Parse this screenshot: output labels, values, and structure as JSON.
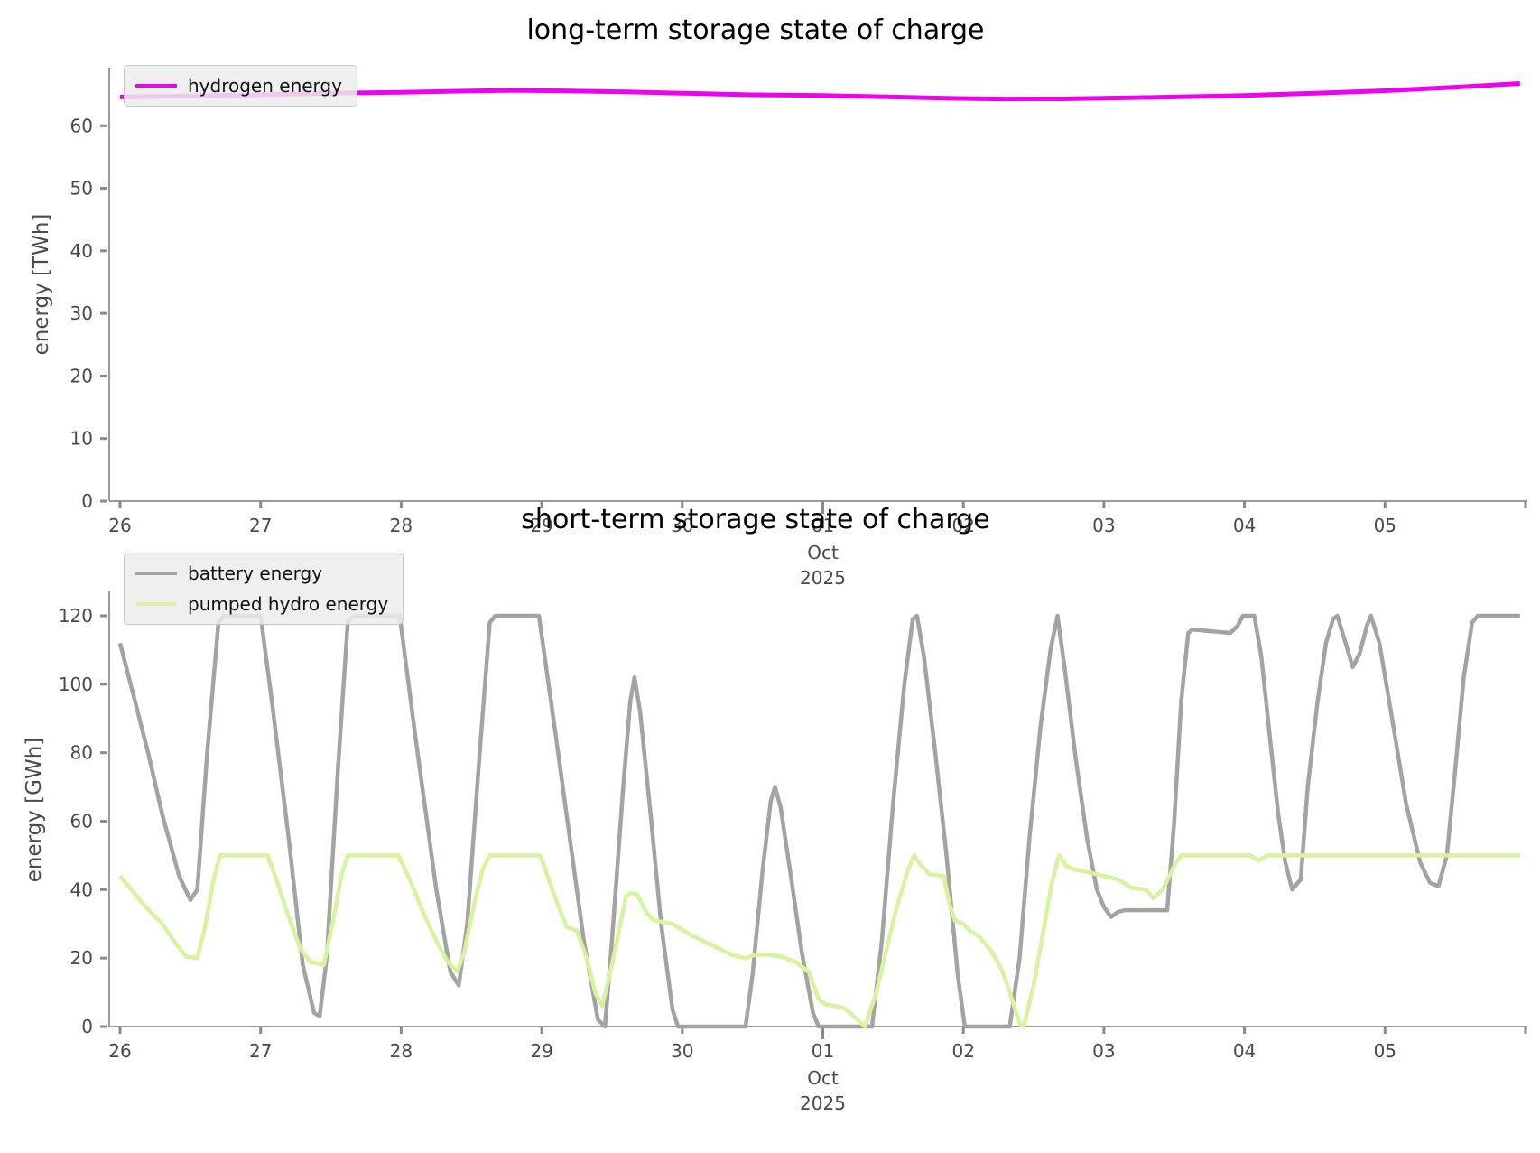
{
  "chart_data": [
    {
      "type": "line",
      "title": "long-term storage state of charge",
      "ylabel": "energy [TWh]",
      "xlabel_month": "Oct",
      "xlabel_year": "2025",
      "x_axis_note": "days from Sep 26 to Oct 05, 2025",
      "ylim": [
        0,
        70
      ],
      "yticks": [
        0,
        10,
        20,
        30,
        40,
        50,
        60
      ],
      "xticks": [
        {
          "t": 26,
          "label": "26"
        },
        {
          "t": 27,
          "label": "27"
        },
        {
          "t": 28,
          "label": "28"
        },
        {
          "t": 29,
          "label": "29"
        },
        {
          "t": 30,
          "label": "30"
        },
        {
          "t": 31,
          "label": "01",
          "major": true,
          "sub": [
            "Oct",
            "2025"
          ]
        },
        {
          "t": 32,
          "label": "02"
        },
        {
          "t": 33,
          "label": "03"
        },
        {
          "t": 34,
          "label": "04"
        },
        {
          "t": 35,
          "label": "05"
        },
        {
          "t": 36,
          "label": ""
        }
      ],
      "legend_position": "upper left",
      "grid": false,
      "series": [
        {
          "name": "hydrogen energy",
          "color": "#f000f0",
          "unit": "TWh",
          "points": [
            [
              26.0,
              64.6
            ],
            [
              26.5,
              64.75
            ],
            [
              27.0,
              64.95
            ],
            [
              27.5,
              65.2
            ],
            [
              28.0,
              65.35
            ],
            [
              28.5,
              65.55
            ],
            [
              28.8,
              65.65
            ],
            [
              29.2,
              65.55
            ],
            [
              29.6,
              65.4
            ],
            [
              30.0,
              65.2
            ],
            [
              30.5,
              64.95
            ],
            [
              31.0,
              64.85
            ],
            [
              31.3,
              64.7
            ],
            [
              31.7,
              64.5
            ],
            [
              32.0,
              64.35
            ],
            [
              32.3,
              64.28
            ],
            [
              32.7,
              64.3
            ],
            [
              33.0,
              64.4
            ],
            [
              33.5,
              64.6
            ],
            [
              34.0,
              64.85
            ],
            [
              34.5,
              65.2
            ],
            [
              35.0,
              65.6
            ],
            [
              35.5,
              66.15
            ],
            [
              35.96,
              66.75
            ]
          ]
        }
      ]
    },
    {
      "type": "line",
      "title": "short-term storage state of charge",
      "ylabel": "energy [GWh]",
      "xlabel_month": "Oct",
      "xlabel_year": "2025",
      "x_axis_note": "days from Sep 26 to Oct 05, 2025",
      "ylim": [
        0,
        127
      ],
      "yticks": [
        0,
        20,
        40,
        60,
        80,
        100,
        120
      ],
      "xticks": [
        {
          "t": 26,
          "label": "26"
        },
        {
          "t": 27,
          "label": "27"
        },
        {
          "t": 28,
          "label": "28"
        },
        {
          "t": 29,
          "label": "29"
        },
        {
          "t": 30,
          "label": "30"
        },
        {
          "t": 31,
          "label": "01",
          "major": true,
          "sub": [
            "Oct",
            "2025"
          ]
        },
        {
          "t": 32,
          "label": "02"
        },
        {
          "t": 33,
          "label": "03"
        },
        {
          "t": 34,
          "label": "04"
        },
        {
          "t": 35,
          "label": "05"
        },
        {
          "t": 36,
          "label": ""
        }
      ],
      "legend_position": "upper left",
      "grid": false,
      "series": [
        {
          "name": "battery energy",
          "color": "#a3a3a3",
          "unit": "GWh",
          "points": [
            [
              26.0,
              112
            ],
            [
              26.1,
              96
            ],
            [
              26.2,
              80
            ],
            [
              26.3,
              62
            ],
            [
              26.42,
              44
            ],
            [
              26.5,
              37
            ],
            [
              26.55,
              40
            ],
            [
              26.62,
              80
            ],
            [
              26.7,
              118
            ],
            [
              26.74,
              120
            ],
            [
              27.0,
              120
            ],
            [
              27.08,
              95
            ],
            [
              27.2,
              55
            ],
            [
              27.3,
              18
            ],
            [
              27.38,
              4
            ],
            [
              27.42,
              3
            ],
            [
              27.47,
              20
            ],
            [
              27.55,
              75
            ],
            [
              27.62,
              118
            ],
            [
              27.66,
              120
            ],
            [
              27.99,
              120
            ],
            [
              28.1,
              85
            ],
            [
              28.25,
              40
            ],
            [
              28.35,
              16
            ],
            [
              28.41,
              12
            ],
            [
              28.47,
              30
            ],
            [
              28.55,
              75
            ],
            [
              28.63,
              118
            ],
            [
              28.67,
              120
            ],
            [
              28.98,
              120
            ],
            [
              29.1,
              85
            ],
            [
              29.2,
              55
            ],
            [
              29.3,
              25
            ],
            [
              29.4,
              2
            ],
            [
              29.45,
              0
            ],
            [
              29.5,
              25
            ],
            [
              29.58,
              70
            ],
            [
              29.63,
              95
            ],
            [
              29.66,
              102
            ],
            [
              29.7,
              92
            ],
            [
              29.78,
              60
            ],
            [
              29.85,
              30
            ],
            [
              29.93,
              5
            ],
            [
              29.97,
              0
            ],
            [
              30.45,
              0
            ],
            [
              30.5,
              15
            ],
            [
              30.57,
              45
            ],
            [
              30.63,
              66
            ],
            [
              30.66,
              70
            ],
            [
              30.7,
              64
            ],
            [
              30.78,
              42
            ],
            [
              30.85,
              22
            ],
            [
              30.93,
              4
            ],
            [
              30.97,
              0
            ],
            [
              31.35,
              0
            ],
            [
              31.42,
              25
            ],
            [
              31.5,
              65
            ],
            [
              31.58,
              100
            ],
            [
              31.64,
              119
            ],
            [
              31.67,
              120
            ],
            [
              31.72,
              108
            ],
            [
              31.8,
              80
            ],
            [
              31.88,
              50
            ],
            [
              31.96,
              15
            ],
            [
              32.01,
              0
            ],
            [
              32.33,
              0
            ],
            [
              32.4,
              20
            ],
            [
              32.47,
              55
            ],
            [
              32.55,
              88
            ],
            [
              32.62,
              110
            ],
            [
              32.67,
              120
            ],
            [
              32.72,
              105
            ],
            [
              32.8,
              78
            ],
            [
              32.88,
              55
            ],
            [
              32.95,
              40
            ],
            [
              33.0,
              35
            ],
            [
              33.05,
              32
            ],
            [
              33.1,
              33.5
            ],
            [
              33.15,
              34
            ],
            [
              33.45,
              34
            ],
            [
              33.5,
              60
            ],
            [
              33.55,
              95
            ],
            [
              33.6,
              115
            ],
            [
              33.63,
              116
            ],
            [
              33.9,
              115
            ],
            [
              33.95,
              117
            ],
            [
              33.99,
              120
            ],
            [
              34.07,
              120
            ],
            [
              34.12,
              108
            ],
            [
              34.18,
              85
            ],
            [
              34.24,
              62
            ],
            [
              34.29,
              48
            ],
            [
              34.34,
              40
            ],
            [
              34.4,
              43
            ],
            [
              34.45,
              70
            ],
            [
              34.52,
              95
            ],
            [
              34.58,
              112
            ],
            [
              34.63,
              119
            ],
            [
              34.66,
              120
            ],
            [
              34.72,
              112
            ],
            [
              34.77,
              105
            ],
            [
              34.82,
              109
            ],
            [
              34.87,
              117
            ],
            [
              34.9,
              120
            ],
            [
              34.96,
              112
            ],
            [
              35.05,
              90
            ],
            [
              35.15,
              65
            ],
            [
              35.25,
              48
            ],
            [
              35.32,
              42
            ],
            [
              35.38,
              41
            ],
            [
              35.44,
              50
            ],
            [
              35.5,
              75
            ],
            [
              35.56,
              102
            ],
            [
              35.62,
              118
            ],
            [
              35.66,
              120
            ],
            [
              35.96,
              120
            ]
          ]
        },
        {
          "name": "pumped hydro energy",
          "color": "#d6f39f",
          "unit": "GWh",
          "points": [
            [
              26.0,
              44
            ],
            [
              26.08,
              40
            ],
            [
              26.15,
              36.5
            ],
            [
              26.25,
              32
            ],
            [
              26.3,
              30
            ],
            [
              26.4,
              24
            ],
            [
              26.47,
              20.5
            ],
            [
              26.55,
              20
            ],
            [
              26.6,
              28
            ],
            [
              26.66,
              42
            ],
            [
              26.71,
              50
            ],
            [
              27.05,
              50
            ],
            [
              27.12,
              42
            ],
            [
              27.2,
              32
            ],
            [
              27.28,
              23
            ],
            [
              27.35,
              19
            ],
            [
              27.45,
              18
            ],
            [
              27.52,
              32
            ],
            [
              27.58,
              45
            ],
            [
              27.62,
              50
            ],
            [
              27.98,
              50
            ],
            [
              28.05,
              44
            ],
            [
              28.15,
              34
            ],
            [
              28.25,
              25
            ],
            [
              28.33,
              19
            ],
            [
              28.4,
              16
            ],
            [
              28.45,
              22
            ],
            [
              28.52,
              36
            ],
            [
              28.58,
              46
            ],
            [
              28.63,
              50
            ],
            [
              28.99,
              50
            ],
            [
              29.05,
              43
            ],
            [
              29.12,
              35
            ],
            [
              29.18,
              29
            ],
            [
              29.25,
              28
            ],
            [
              29.32,
              20
            ],
            [
              29.38,
              10
            ],
            [
              29.43,
              6
            ],
            [
              29.5,
              18
            ],
            [
              29.56,
              30
            ],
            [
              29.6,
              38
            ],
            [
              29.63,
              39
            ],
            [
              29.68,
              38.5
            ],
            [
              29.75,
              33
            ],
            [
              29.8,
              31
            ],
            [
              29.93,
              30
            ],
            [
              30.05,
              27
            ],
            [
              30.15,
              25
            ],
            [
              30.25,
              23
            ],
            [
              30.35,
              21
            ],
            [
              30.45,
              20
            ],
            [
              30.52,
              21
            ],
            [
              30.6,
              21
            ],
            [
              30.7,
              20.5
            ],
            [
              30.8,
              19
            ],
            [
              30.9,
              16
            ],
            [
              30.97,
              8
            ],
            [
              31.02,
              6.5
            ],
            [
              31.15,
              5.5
            ],
            [
              31.22,
              3
            ],
            [
              31.3,
              0
            ],
            [
              31.38,
              10
            ],
            [
              31.45,
              22
            ],
            [
              31.52,
              34
            ],
            [
              31.6,
              45
            ],
            [
              31.65,
              50
            ],
            [
              31.7,
              47
            ],
            [
              31.76,
              44.5
            ],
            [
              31.86,
              44
            ],
            [
              31.9,
              36
            ],
            [
              31.94,
              31
            ],
            [
              32.0,
              30
            ],
            [
              32.05,
              28
            ],
            [
              32.12,
              26
            ],
            [
              32.2,
              22
            ],
            [
              32.27,
              17
            ],
            [
              32.33,
              10
            ],
            [
              32.4,
              1
            ],
            [
              32.43,
              0
            ],
            [
              32.5,
              12
            ],
            [
              32.57,
              28
            ],
            [
              32.63,
              42
            ],
            [
              32.68,
              50
            ],
            [
              32.73,
              47
            ],
            [
              32.78,
              46
            ],
            [
              32.9,
              45
            ],
            [
              33.0,
              44
            ],
            [
              33.1,
              43
            ],
            [
              33.2,
              40.5
            ],
            [
              33.3,
              40
            ],
            [
              33.35,
              37.5
            ],
            [
              33.42,
              40
            ],
            [
              33.5,
              47
            ],
            [
              33.55,
              50
            ],
            [
              34.04,
              50
            ],
            [
              34.1,
              48.5
            ],
            [
              34.16,
              50
            ],
            [
              35.96,
              50
            ]
          ]
        }
      ]
    }
  ]
}
